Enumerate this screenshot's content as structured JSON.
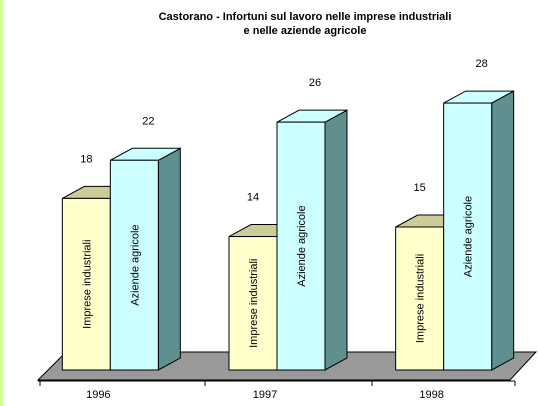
{
  "chart_data": {
    "type": "bar3d",
    "title": [
      "Castorano - Infortuni sul lavoro nelle imprese industriali",
      "e  nelle aziende agricole"
    ],
    "categories": [
      "1996",
      "1997",
      "1998"
    ],
    "series": [
      {
        "name": "Imprese industriali",
        "color": "#ffffcc",
        "values": [
          18,
          14,
          15
        ]
      },
      {
        "name": "Aziende agricole",
        "color": "#ccffff",
        "values": [
          22,
          26,
          28
        ]
      }
    ],
    "ylim": [
      0,
      30
    ]
  }
}
